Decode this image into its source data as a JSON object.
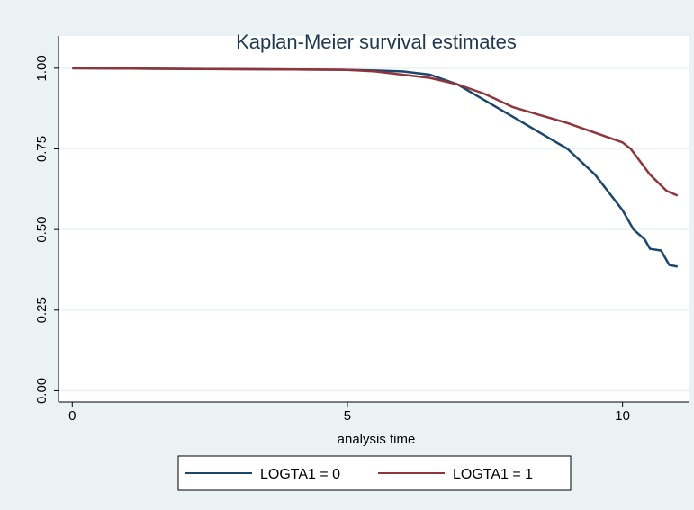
{
  "chart_data": {
    "type": "line",
    "title": "Kaplan-Meier survival estimates",
    "x_label": "analysis time",
    "xlim": [
      -0.25,
      11.2
    ],
    "ylim": [
      -0.035,
      1.1
    ],
    "xticks": [
      0,
      5,
      10
    ],
    "yticks": [
      {
        "value": 0,
        "label": "0.00"
      },
      0.25,
      {
        "value": 0.5,
        "label": "0.50"
      },
      0.75,
      {
        "value": 1,
        "label": "1.00"
      }
    ],
    "grid": true,
    "legend": "bottom",
    "series": [
      {
        "name": "LOGTA1 = 0",
        "color": "#1a476f",
        "x": [
          0,
          2,
          4,
          5,
          5.5,
          6,
          6.5,
          7,
          7.5,
          8,
          8.5,
          9,
          9.5,
          10,
          10.2,
          10.4,
          10.5,
          10.7,
          10.85,
          11
        ],
        "values": [
          1,
          0.998,
          0.996,
          0.995,
          0.993,
          0.99,
          0.98,
          0.95,
          0.9,
          0.85,
          0.8,
          0.75,
          0.67,
          0.56,
          0.5,
          0.47,
          0.44,
          0.435,
          0.39,
          0.385
        ]
      },
      {
        "name": "LOGTA1 = 1",
        "color": "#90353b",
        "x": [
          0,
          2,
          4,
          5,
          5.5,
          6,
          6.5,
          7,
          7.5,
          8,
          8.5,
          9,
          9.5,
          10,
          10.15,
          10.5,
          10.8,
          11
        ],
        "values": [
          1,
          0.998,
          0.996,
          0.995,
          0.99,
          0.98,
          0.97,
          0.95,
          0.92,
          0.88,
          0.855,
          0.83,
          0.8,
          0.77,
          0.75,
          0.67,
          0.62,
          0.605
        ]
      }
    ]
  }
}
